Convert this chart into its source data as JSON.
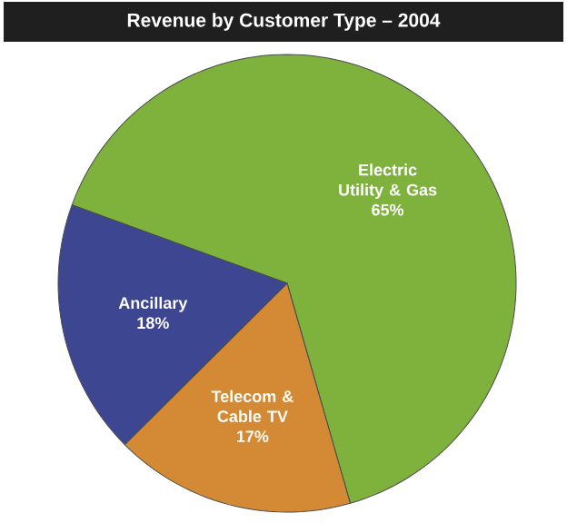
{
  "chart_data": {
    "type": "pie",
    "title": "Revenue by Customer Type – 2004",
    "categories": [
      "Electric Utility & Gas",
      "Telecom & Cable TV",
      "Ancillary"
    ],
    "values": [
      65,
      17,
      18
    ],
    "colors": [
      "#7fb23c",
      "#d48a34",
      "#3d4690"
    ],
    "value_labels": [
      "65%",
      "17%",
      "18%"
    ]
  }
}
